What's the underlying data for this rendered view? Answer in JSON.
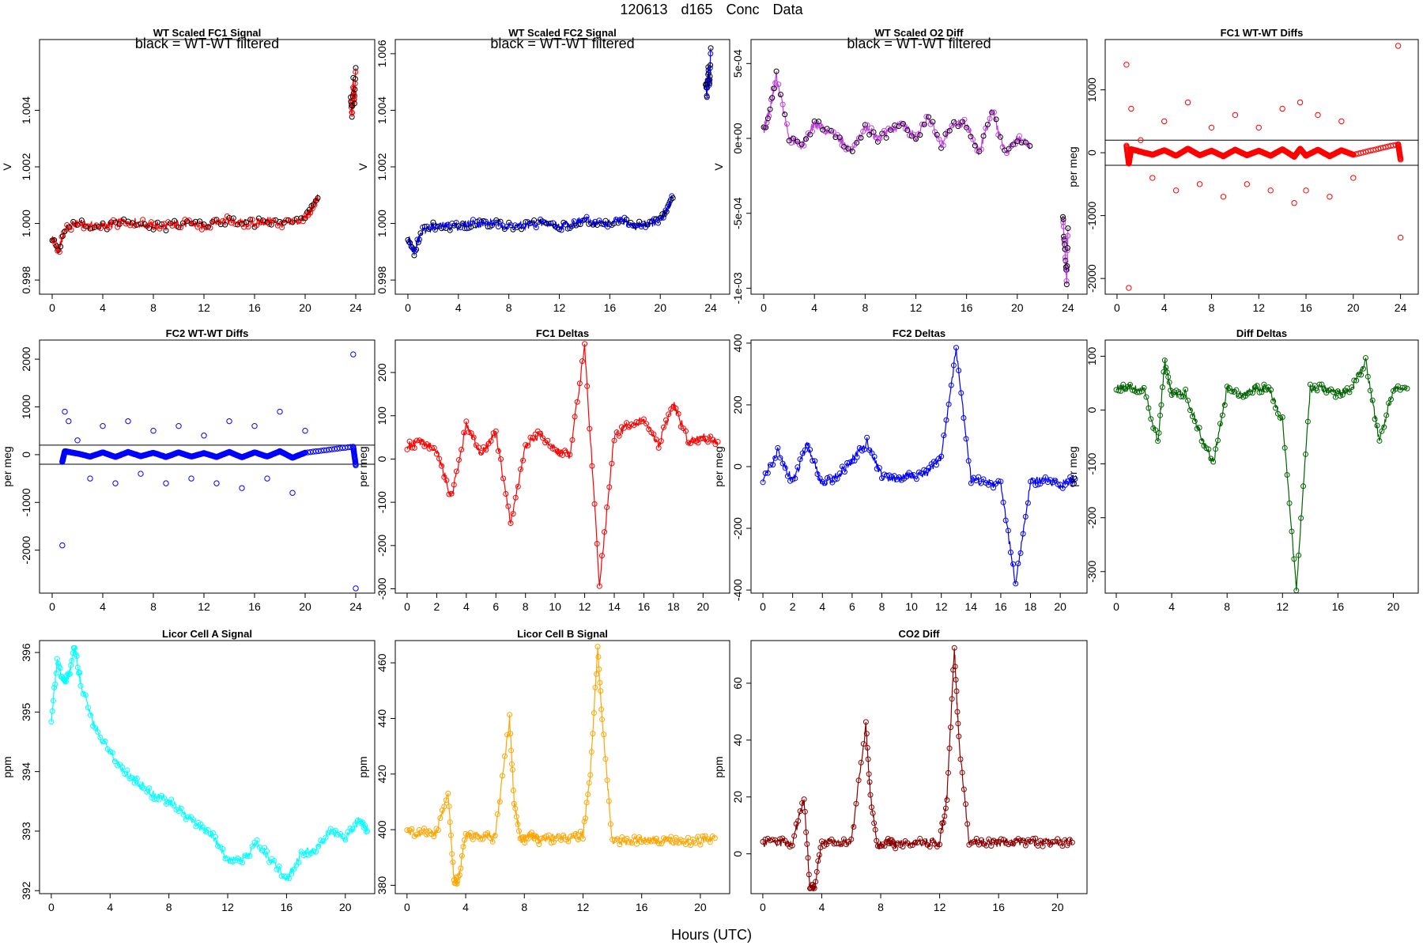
{
  "page": {
    "title": "120613   d165   Conc Data",
    "xlabel": "Hours (UTC)"
  },
  "chart_data": [
    {
      "type": "line",
      "title": "WT Scaled FC1 Signal",
      "annotation": "black = WT-WT filtered",
      "ylabel": "V",
      "color": "#ff0000",
      "overlay_color": "#000000",
      "xlim": [
        -1,
        25.5
      ],
      "ylim": [
        0.9975,
        1.0065
      ],
      "xticks": [
        "0",
        "4",
        "8",
        "12",
        "16",
        "20",
        "24"
      ],
      "yticks": [
        "0.998",
        "1.000",
        "1.002",
        "1.004"
      ],
      "series": [
        {
          "name": "signal",
          "x": [
            0,
            0.5,
            1,
            2,
            3,
            4,
            5,
            6,
            7,
            8,
            9,
            10,
            11,
            12,
            13,
            14,
            15,
            16,
            17,
            18,
            19,
            20,
            20.5,
            21
          ],
          "y": [
            0.9995,
            0.999,
            0.9998,
            1.0,
            0.9999,
            0.9999,
            1.0,
            1.0001,
            1.0,
            0.9999,
            0.9999,
            1.0,
            1.0,
            0.9999,
            1.0001,
            1.0001,
            1.0,
            1.0,
            1.0001,
            1.0,
            1.0,
            1.0002,
            1.0005,
            1.0009
          ]
        },
        {
          "name": "late",
          "x": [
            23.6,
            23.7,
            23.8,
            23.9,
            24.0
          ],
          "y": [
            1.0045,
            1.0038,
            1.005,
            1.0042,
            1.0055
          ]
        }
      ],
      "hlines": []
    },
    {
      "type": "line",
      "title": "WT Scaled FC2 Signal",
      "annotation": "black = WT-WT filtered",
      "ylabel": "V",
      "color": "#0000ff",
      "overlay_color": "#000000",
      "xlim": [
        -1,
        25.5
      ],
      "ylim": [
        0.9975,
        1.0065
      ],
      "xticks": [
        "0",
        "4",
        "8",
        "12",
        "16",
        "20",
        "24"
      ],
      "yticks": [
        "0.998",
        "1.000",
        "1.002",
        "1.004",
        "1.006"
      ],
      "series": [
        {
          "name": "signal",
          "x": [
            0,
            0.5,
            1,
            2,
            3,
            4,
            5,
            6,
            7,
            8,
            9,
            10,
            11,
            12,
            13,
            14,
            15,
            16,
            17,
            18,
            19,
            20,
            20.5,
            21
          ],
          "y": [
            0.9995,
            0.999,
            0.9997,
            0.9999,
            0.9999,
            0.9999,
            1.0,
            1.0,
            1.0,
            0.9999,
            0.9999,
            1.0,
            1.0,
            0.9999,
            1.0,
            1.0001,
            1.0,
            1.0,
            1.0001,
            0.9999,
            1.0,
            1.0001,
            1.0005,
            1.0009
          ]
        },
        {
          "name": "late",
          "x": [
            23.6,
            23.7,
            23.8,
            23.9,
            24.0
          ],
          "y": [
            1.005,
            1.0045,
            1.0055,
            1.0048,
            1.0062
          ]
        }
      ],
      "hlines": []
    },
    {
      "type": "line",
      "title": "WT Scaled O2 Diff",
      "annotation": "black = WT-WT filtered",
      "ylabel": "V",
      "color": "#c040e0",
      "overlay_color": "#000000",
      "xlim": [
        -1,
        25.5
      ],
      "ylim": [
        -0.00104,
        0.00066
      ],
      "xticks": [
        "0",
        "4",
        "8",
        "12",
        "16",
        "20",
        "24"
      ],
      "yticks": [
        "-1e-03",
        "-5e-04",
        "0e+00",
        "5e-04"
      ],
      "ytick_values": [
        -0.001,
        -0.0005,
        0,
        0.0005
      ],
      "series": [
        {
          "name": "signal",
          "x": [
            0,
            0.5,
            1,
            2,
            3,
            4,
            5,
            6,
            7,
            8,
            9,
            10,
            11,
            12,
            13,
            14,
            15,
            16,
            17,
            18,
            19,
            20,
            21
          ],
          "y": [
            5e-05,
            0.0002,
            0.00042,
            0.0,
            -5e-05,
            0.0001,
            5e-05,
            0.0,
            -0.0001,
            8e-05,
            0.0,
            5e-05,
            0.0001,
            0.0,
            0.00015,
            -5e-05,
            0.0001,
            0.0001,
            -0.0001,
            0.0002,
            -0.0001,
            0.0,
            -5e-05
          ]
        },
        {
          "name": "late",
          "x": [
            23.6,
            23.7,
            23.8,
            23.9,
            24.0
          ],
          "y": [
            -0.0005,
            -0.0007,
            -0.0008,
            -0.00095,
            -0.0006
          ]
        }
      ],
      "hlines": []
    },
    {
      "type": "scatter",
      "title": "FC1 WT-WT Diffs",
      "ylabel": "per meg",
      "color": "#ff0000",
      "xlim": [
        -1,
        25.5
      ],
      "ylim": [
        -2250,
        1800
      ],
      "xticks": [
        "0",
        "4",
        "8",
        "12",
        "16",
        "20",
        "24"
      ],
      "yticks": [
        "-2000",
        "-1000",
        "0",
        "1000"
      ],
      "ytick_values": [
        -2000,
        -1000,
        0,
        1000
      ],
      "series": [
        {
          "name": "diffs",
          "x": [
            0.8,
            1.0,
            1.2,
            2,
            3,
            4,
            5,
            6,
            7,
            8,
            9,
            10,
            11,
            12,
            13,
            14,
            15,
            15.5,
            16,
            17,
            18,
            19,
            20,
            23.8,
            24.0
          ],
          "y": [
            1400,
            -2150,
            700,
            200,
            -400,
            500,
            -600,
            800,
            -500,
            400,
            -700,
            600,
            -500,
            400,
            -600,
            700,
            -800,
            800,
            -600,
            600,
            -700,
            500,
            -400,
            1700,
            -1350
          ]
        }
      ],
      "hlines": [
        200,
        -200
      ]
    },
    {
      "type": "scatter",
      "title": "FC2 WT-WT Diffs",
      "ylabel": "per meg",
      "color": "#0000ff",
      "xlim": [
        -1,
        25.5
      ],
      "ylim": [
        -2900,
        2400
      ],
      "xticks": [
        "0",
        "4",
        "8",
        "12",
        "16",
        "20",
        "24"
      ],
      "yticks": [
        "-2000",
        "-1000",
        "0",
        "1000",
        "2000"
      ],
      "ytick_values": [
        -2000,
        -1000,
        0,
        1000,
        2000
      ],
      "series": [
        {
          "name": "diffs",
          "x": [
            0.8,
            1.0,
            1.3,
            2,
            3,
            4,
            5,
            6,
            7,
            8,
            9,
            10,
            11,
            12,
            13,
            14,
            15,
            16,
            17,
            18,
            19,
            20,
            23.8,
            24.0
          ],
          "y": [
            -1900,
            900,
            700,
            300,
            -500,
            600,
            -600,
            700,
            -400,
            500,
            -600,
            600,
            -500,
            400,
            -600,
            700,
            -700,
            600,
            -500,
            900,
            -800,
            500,
            2100,
            -2800
          ]
        }
      ],
      "hlines": [
        200,
        -200
      ]
    },
    {
      "type": "line",
      "title": "FC1 Deltas",
      "ylabel": "per meg",
      "color": "#ff0000",
      "xlim": [
        -0.8,
        21.8
      ],
      "ylim": [
        -310,
        275
      ],
      "xticks": [
        "0",
        "2",
        "4",
        "6",
        "8",
        "10",
        "12",
        "14",
        "16",
        "18",
        "20"
      ],
      "yticks": [
        "-300",
        "-200",
        "-100",
        "0",
        "100",
        "200"
      ],
      "ytick_values": [
        -300,
        -200,
        -100,
        0,
        100,
        200
      ],
      "series": [
        {
          "name": "deltas",
          "x": [
            0,
            1,
            2,
            3,
            4,
            5,
            6,
            7,
            8,
            9,
            10,
            11,
            12,
            13,
            14,
            15,
            16,
            17,
            18,
            19,
            20,
            21
          ],
          "y": [
            30,
            40,
            20,
            -90,
            80,
            10,
            60,
            -150,
            30,
            60,
            20,
            10,
            260,
            -290,
            50,
            80,
            90,
            30,
            130,
            40,
            50,
            40
          ]
        }
      ],
      "hlines": []
    },
    {
      "type": "line",
      "title": "FC2 Deltas",
      "ylabel": "per meg",
      "color": "#0000ff",
      "xlim": [
        -0.8,
        21.8
      ],
      "ylim": [
        -410,
        410
      ],
      "xticks": [
        "0",
        "2",
        "4",
        "6",
        "8",
        "10",
        "12",
        "14",
        "16",
        "18",
        "20"
      ],
      "yticks": [
        "-400",
        "-200",
        "0",
        "200",
        "400"
      ],
      "ytick_values": [
        -400,
        -200,
        0,
        200,
        400
      ],
      "series": [
        {
          "name": "deltas",
          "x": [
            0,
            1,
            2,
            3,
            4,
            5,
            6,
            7,
            8,
            9,
            10,
            11,
            12,
            13,
            14,
            15,
            16,
            17,
            18,
            19,
            20,
            21
          ],
          "y": [
            -40,
            50,
            -50,
            70,
            -60,
            -30,
            20,
            80,
            -30,
            -40,
            -30,
            -20,
            30,
            380,
            -40,
            -50,
            -60,
            -380,
            -50,
            -40,
            -60,
            -40
          ]
        }
      ],
      "hlines": []
    },
    {
      "type": "line",
      "title": "Diff Deltas",
      "ylabel": "per meg",
      "color": "#006400",
      "xlim": [
        -0.8,
        21.8
      ],
      "ylim": [
        -340,
        130
      ],
      "xticks": [
        "0",
        "4",
        "8",
        "12",
        "16",
        "20"
      ],
      "yticks": [
        "-300",
        "-200",
        "-100",
        "0",
        "100"
      ],
      "ytick_values": [
        -300,
        -200,
        -100,
        0,
        100
      ],
      "series": [
        {
          "name": "deltas",
          "x": [
            0,
            1,
            2,
            3,
            3.5,
            4,
            5,
            6,
            7,
            8,
            9,
            10,
            11,
            12,
            13,
            14,
            15,
            16,
            17,
            18,
            19,
            20,
            21
          ],
          "y": [
            40,
            40,
            40,
            -60,
            90,
            30,
            30,
            -40,
            -100,
            40,
            30,
            40,
            40,
            -20,
            -330,
            40,
            40,
            30,
            40,
            90,
            -60,
            40,
            40
          ]
        }
      ],
      "hlines": []
    },
    {
      "type": "line",
      "title": "Licor Cell A Signal",
      "ylabel": "ppm",
      "color": "#00ffff",
      "xlim": [
        -0.8,
        22
      ],
      "ylim": [
        391.95,
        396.2
      ],
      "xticks": [
        "0",
        "4",
        "8",
        "12",
        "16",
        "20"
      ],
      "yticks": [
        "392",
        "393",
        "394",
        "395",
        "396"
      ],
      "ytick_values": [
        392,
        393,
        394,
        395,
        396
      ],
      "series": [
        {
          "name": "cellA",
          "x": [
            0,
            0.4,
            0.8,
            1.2,
            1.6,
            2,
            3,
            4,
            5,
            6,
            7,
            8,
            9,
            10,
            11,
            12,
            13,
            14,
            15,
            16,
            17,
            18,
            19,
            20,
            21,
            21.5
          ],
          "y": [
            394.8,
            395.9,
            395.5,
            395.6,
            396.1,
            395.5,
            394.7,
            394.3,
            394.0,
            393.8,
            393.6,
            393.5,
            393.3,
            393.1,
            392.9,
            392.5,
            392.5,
            392.8,
            392.5,
            392.2,
            392.6,
            392.7,
            393.0,
            392.9,
            393.2,
            393.0
          ]
        }
      ],
      "hlines": []
    },
    {
      "type": "line",
      "title": "Licor Cell B Signal",
      "ylabel": "ppm",
      "color": "#ffa500",
      "xlim": [
        -0.8,
        22
      ],
      "ylim": [
        377,
        468
      ],
      "xticks": [
        "0",
        "4",
        "8",
        "12",
        "16",
        "20"
      ],
      "yticks": [
        "380",
        "400",
        "420",
        "440",
        "460"
      ],
      "ytick_values": [
        380,
        400,
        420,
        440,
        460
      ],
      "series": [
        {
          "name": "cellB",
          "x": [
            0,
            1,
            2,
            2.8,
            3.2,
            3.5,
            4,
            5,
            6,
            7,
            7.3,
            7.8,
            8.5,
            9,
            10,
            11,
            12,
            12.5,
            13,
            13.3,
            14,
            15,
            16,
            17,
            18,
            19,
            20,
            21
          ],
          "y": [
            399,
            399,
            399,
            413,
            382,
            382,
            398,
            398,
            397,
            440,
            410,
            396,
            398,
            396,
            397,
            397,
            398,
            420,
            465,
            440,
            396,
            396,
            396,
            396,
            396,
            396,
            396,
            397
          ]
        }
      ],
      "hlines": []
    },
    {
      "type": "line",
      "title": "CO2 Diff",
      "ylabel": "ppm",
      "color": "#8b0000",
      "xlim": [
        -0.8,
        22
      ],
      "ylim": [
        -14,
        75
      ],
      "xticks": [
        "0",
        "4",
        "8",
        "12",
        "16",
        "20"
      ],
      "yticks": [
        "0",
        "20",
        "40",
        "60"
      ],
      "ytick_values": [
        0,
        20,
        40,
        60
      ],
      "series": [
        {
          "name": "co2diff",
          "x": [
            0,
            1,
            2,
            2.8,
            3.2,
            3.5,
            4,
            5,
            6,
            7,
            7.3,
            7.8,
            8.5,
            9,
            10,
            11,
            12,
            12.5,
            13,
            13.3,
            14,
            15,
            16,
            17,
            18,
            19,
            20,
            21
          ],
          "y": [
            4,
            4,
            4,
            19,
            -12,
            -12,
            4,
            4,
            4,
            45,
            20,
            3,
            4,
            3,
            4,
            4,
            4,
            20,
            72,
            40,
            4,
            4,
            4,
            4,
            4,
            4,
            4,
            4
          ]
        }
      ],
      "hlines": []
    }
  ]
}
